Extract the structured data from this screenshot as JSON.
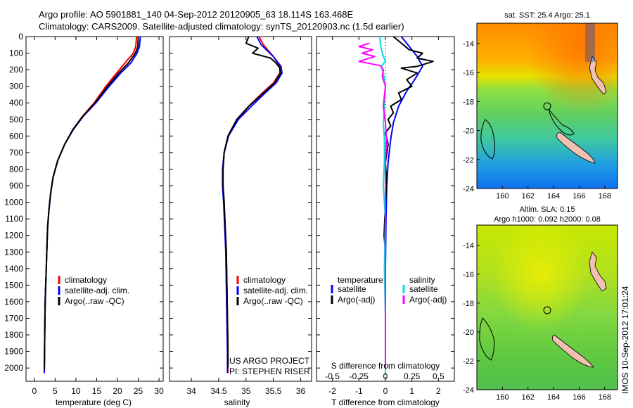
{
  "title": {
    "line1": "Argo profile: AO 5901881_140 04-Sep-2012 20120905_63 18.114S 163.468E",
    "line2": "Climatology: CARS2009. Satellite-adjusted climatology: synTS_20120903.nc (1.5d earlier)"
  },
  "footer_stamp": "IMOS 10-Sep-2012 17:01:24",
  "project_credit": {
    "line1": "US ARGO PROJECT",
    "line2": "PI: STEPHEN RISER"
  },
  "chart_data": [
    {
      "id": "temperature",
      "type": "line",
      "xlabel": "temperature (deg C)",
      "ylabel": "",
      "xlim": [
        -2,
        31
      ],
      "ylim": [
        2080,
        0
      ],
      "xticks": [
        0,
        5,
        10,
        15,
        20,
        25,
        30
      ],
      "yticks": [
        0,
        100,
        200,
        300,
        400,
        500,
        600,
        700,
        800,
        900,
        1000,
        1100,
        1200,
        1300,
        1400,
        1500,
        1600,
        1700,
        1800,
        1900,
        2000
      ],
      "legend": {
        "placement": "lower-center",
        "entries": [
          "climatology",
          "satellite-adj. clim.",
          "Argo(..raw -QC)"
        ]
      },
      "series": [
        {
          "name": "climatology",
          "color": "#ff0000",
          "points": [
            [
              24.6,
              0
            ],
            [
              24.4,
              60
            ],
            [
              23.8,
              100
            ],
            [
              21.8,
              160
            ],
            [
              19.8,
              220
            ],
            [
              17.2,
              300
            ],
            [
              14.4,
              400
            ],
            [
              11.6,
              480
            ],
            [
              9.3,
              560
            ],
            [
              7.3,
              650
            ],
            [
              5.6,
              750
            ],
            [
              4.5,
              850
            ],
            [
              3.9,
              950
            ],
            [
              3.5,
              1050
            ],
            [
              3.2,
              1150
            ],
            [
              3.0,
              1300
            ],
            [
              2.8,
              1450
            ],
            [
              2.6,
              1600
            ],
            [
              2.5,
              1800
            ],
            [
              2.4,
              2030
            ]
          ]
        },
        {
          "name": "satellite-adj. clim.",
          "color": "#0000ff",
          "points": [
            [
              25.5,
              0
            ],
            [
              25.3,
              60
            ],
            [
              24.7,
              100
            ],
            [
              23.2,
              160
            ],
            [
              20.8,
              220
            ],
            [
              18.0,
              300
            ],
            [
              14.8,
              400
            ],
            [
              11.8,
              480
            ],
            [
              9.4,
              560
            ],
            [
              7.3,
              650
            ],
            [
              5.6,
              750
            ],
            [
              4.5,
              850
            ],
            [
              3.9,
              950
            ],
            [
              3.5,
              1050
            ],
            [
              3.2,
              1150
            ],
            [
              3.0,
              1300
            ],
            [
              2.8,
              1450
            ],
            [
              2.6,
              1600
            ],
            [
              2.5,
              1800
            ],
            [
              2.4,
              2030
            ]
          ]
        },
        {
          "name": "Argo(..raw -QC)",
          "color": "#000000",
          "points": [
            [
              25.0,
              0
            ],
            [
              24.9,
              60
            ],
            [
              24.3,
              100
            ],
            [
              22.6,
              160
            ],
            [
              20.3,
              220
            ],
            [
              17.6,
              300
            ],
            [
              14.6,
              400
            ],
            [
              11.7,
              480
            ],
            [
              9.3,
              560
            ],
            [
              7.3,
              650
            ],
            [
              5.6,
              750
            ],
            [
              4.5,
              850
            ],
            [
              3.9,
              950
            ],
            [
              3.5,
              1050
            ],
            [
              3.2,
              1150
            ],
            [
              3.0,
              1300
            ],
            [
              2.8,
              1450
            ],
            [
              2.6,
              1600
            ],
            [
              2.5,
              1800
            ],
            [
              2.4,
              2010
            ]
          ]
        }
      ]
    },
    {
      "id": "salinity",
      "type": "line",
      "xlabel": "salinity",
      "xlim": [
        33.6,
        36.2
      ],
      "ylim": [
        2080,
        0
      ],
      "xticks": [
        34,
        34.5,
        35,
        35.5,
        36
      ],
      "legend": {
        "placement": "lower-right",
        "entries": [
          "climatology",
          "satellite-adj. clim.",
          "Argo(..raw -QC)"
        ]
      },
      "series": [
        {
          "name": "climatology",
          "color": "#ff0000",
          "points": [
            [
              35.24,
              0
            ],
            [
              35.32,
              50
            ],
            [
              35.5,
              120
            ],
            [
              35.62,
              180
            ],
            [
              35.62,
              220
            ],
            [
              35.5,
              280
            ],
            [
              35.3,
              340
            ],
            [
              35.05,
              420
            ],
            [
              34.85,
              500
            ],
            [
              34.68,
              600
            ],
            [
              34.6,
              700
            ],
            [
              34.58,
              800
            ],
            [
              34.58,
              900
            ],
            [
              34.6,
              1000
            ],
            [
              34.62,
              1150
            ],
            [
              34.64,
              1300
            ],
            [
              34.65,
              1500
            ],
            [
              34.66,
              1700
            ],
            [
              34.67,
              1900
            ],
            [
              34.67,
              2030
            ]
          ]
        },
        {
          "name": "satellite-adj. clim.",
          "color": "#0000ff",
          "points": [
            [
              35.2,
              0
            ],
            [
              35.28,
              50
            ],
            [
              35.5,
              120
            ],
            [
              35.64,
              180
            ],
            [
              35.66,
              220
            ],
            [
              35.55,
              280
            ],
            [
              35.35,
              340
            ],
            [
              35.1,
              420
            ],
            [
              34.86,
              500
            ],
            [
              34.68,
              600
            ],
            [
              34.6,
              700
            ],
            [
              34.57,
              800
            ],
            [
              34.57,
              900
            ],
            [
              34.59,
              1000
            ],
            [
              34.61,
              1150
            ],
            [
              34.63,
              1300
            ],
            [
              34.64,
              1500
            ],
            [
              34.65,
              1700
            ],
            [
              34.66,
              1900
            ],
            [
              34.66,
              2030
            ]
          ]
        },
        {
          "name": "Argo(..raw -QC)",
          "color": "#000000",
          "points": [
            [
              35.05,
              0
            ],
            [
              35.0,
              40
            ],
            [
              35.22,
              70
            ],
            [
              35.12,
              100
            ],
            [
              35.45,
              130
            ],
            [
              35.55,
              160
            ],
            [
              35.62,
              190
            ],
            [
              35.63,
              220
            ],
            [
              35.52,
              280
            ],
            [
              35.32,
              340
            ],
            [
              35.05,
              420
            ],
            [
              34.83,
              500
            ],
            [
              34.67,
              600
            ],
            [
              34.6,
              700
            ],
            [
              34.58,
              800
            ],
            [
              34.58,
              900
            ],
            [
              34.6,
              1000
            ],
            [
              34.62,
              1150
            ],
            [
              34.64,
              1300
            ],
            [
              34.65,
              1500
            ],
            [
              34.66,
              1700
            ],
            [
              34.67,
              1900
            ],
            [
              34.67,
              2000
            ]
          ]
        }
      ]
    },
    {
      "id": "differences",
      "type": "line",
      "xlabel": "T difference from climatology",
      "xlabel_top": "S difference from climatology",
      "xlim": [
        -2.6,
        2.6
      ],
      "ylim": [
        2080,
        0
      ],
      "xticks": [
        -2,
        -1,
        0,
        1,
        2
      ],
      "xticks_s": [
        -0.5,
        -0.25,
        0,
        0.25,
        0.5
      ],
      "s_scale": 4,
      "legend": {
        "placement": "lower-center",
        "groups": [
          "temperature",
          "salinity"
        ],
        "entries": [
          "satellite",
          "Argo(-adj)",
          "satellite",
          "Argo(-adj)"
        ]
      },
      "series": [
        {
          "name": "T satellite",
          "quantity": "temperature",
          "color": "#0000ff",
          "points": [
            [
              0.6,
              0
            ],
            [
              0.9,
              60
            ],
            [
              1.2,
              120
            ],
            [
              1.4,
              180
            ],
            [
              1.1,
              260
            ],
            [
              0.8,
              330
            ],
            [
              0.5,
              420
            ],
            [
              0.3,
              520
            ],
            [
              0.2,
              620
            ],
            [
              0.1,
              760
            ],
            [
              0.05,
              900
            ],
            [
              0.02,
              1100
            ],
            [
              0.0,
              1400
            ],
            [
              0.0,
              1700
            ],
            [
              0.0,
              2030
            ]
          ]
        },
        {
          "name": "T Argo(-adj)",
          "quantity": "temperature",
          "color": "#000000",
          "points": [
            [
              0.3,
              0
            ],
            [
              0.6,
              40
            ],
            [
              0.9,
              80
            ],
            [
              1.4,
              100
            ],
            [
              1.2,
              130
            ],
            [
              1.8,
              150
            ],
            [
              1.2,
              180
            ],
            [
              0.6,
              190
            ],
            [
              1.2,
              220
            ],
            [
              0.8,
              260
            ],
            [
              1.0,
              300
            ],
            [
              0.5,
              340
            ],
            [
              0.6,
              380
            ],
            [
              0.2,
              420
            ],
            [
              0.3,
              460
            ],
            [
              0.1,
              500
            ],
            [
              0.2,
              540
            ],
            [
              0.0,
              580
            ],
            [
              0.1,
              650
            ],
            [
              0.0,
              760
            ],
            [
              0.05,
              880
            ],
            [
              0.0,
              1000
            ],
            [
              -0.05,
              1200
            ],
            [
              0.0,
              1300
            ],
            [
              0.0,
              1600
            ],
            [
              0.0,
              1800
            ],
            [
              0.0,
              2000
            ]
          ]
        },
        {
          "name": "S satellite",
          "quantity": "salinity",
          "color": "#00e0e0",
          "points": [
            [
              -0.05,
              0
            ],
            [
              -0.05,
              40
            ],
            [
              -0.03,
              100
            ],
            [
              0.0,
              150
            ],
            [
              -0.04,
              180
            ],
            [
              -0.02,
              220
            ],
            [
              0.0,
              300
            ],
            [
              -0.01,
              420
            ],
            [
              -0.02,
              520
            ],
            [
              -0.01,
              620
            ],
            [
              -0.01,
              760
            ],
            [
              -0.02,
              900
            ],
            [
              0.0,
              1100
            ],
            [
              -0.01,
              1400
            ],
            [
              0.0,
              1700
            ],
            [
              0.0,
              2030
            ]
          ]
        },
        {
          "name": "S Argo(-adj)",
          "quantity": "salinity",
          "color": "#ff00ff",
          "points": [
            [
              -0.15,
              40
            ],
            [
              -0.25,
              60
            ],
            [
              -0.12,
              80
            ],
            [
              -0.22,
              100
            ],
            [
              -0.1,
              120
            ],
            [
              -0.25,
              150
            ],
            [
              -0.05,
              175
            ],
            [
              -0.02,
              200
            ],
            [
              -0.03,
              240
            ],
            [
              0.0,
              300
            ],
            [
              -0.02,
              420
            ],
            [
              0.0,
              520
            ],
            [
              0.01,
              620
            ],
            [
              0.0,
              760
            ],
            [
              0.0,
              900
            ],
            [
              0.0,
              1100
            ],
            [
              0.0,
              1300
            ],
            [
              0.0,
              1600
            ],
            [
              0.0,
              1800
            ],
            [
              0.0,
              2000
            ]
          ]
        }
      ]
    },
    {
      "id": "sst-map",
      "type": "heatmap",
      "title": "sat. SST: 25.4  Argo: 25.1",
      "xlim": [
        158,
        169
      ],
      "ylim": [
        -24,
        -12.6
      ],
      "xticks": [
        160,
        162,
        164,
        166,
        168
      ],
      "yticks": [
        -14,
        -16,
        -18,
        -20,
        -22,
        -24
      ]
    },
    {
      "id": "sla-map",
      "type": "heatmap",
      "title": "Altim. SLA: 0.15",
      "subtitle": "Argo h1000: 0.092 h2000: 0.08",
      "xlim": [
        158,
        169
      ],
      "ylim": [
        -24,
        -12.6
      ],
      "xticks": [
        160,
        162,
        164,
        166,
        168
      ],
      "yticks": [
        -14,
        -16,
        -18,
        -20,
        -22,
        -24
      ]
    }
  ],
  "colors": {
    "climatology": "#ff0000",
    "satellite": "#0000ff",
    "argo": "#000000",
    "s_satellite": "#00e0e0",
    "s_argo": "#ff00ff",
    "land": "#f0c0b0"
  }
}
